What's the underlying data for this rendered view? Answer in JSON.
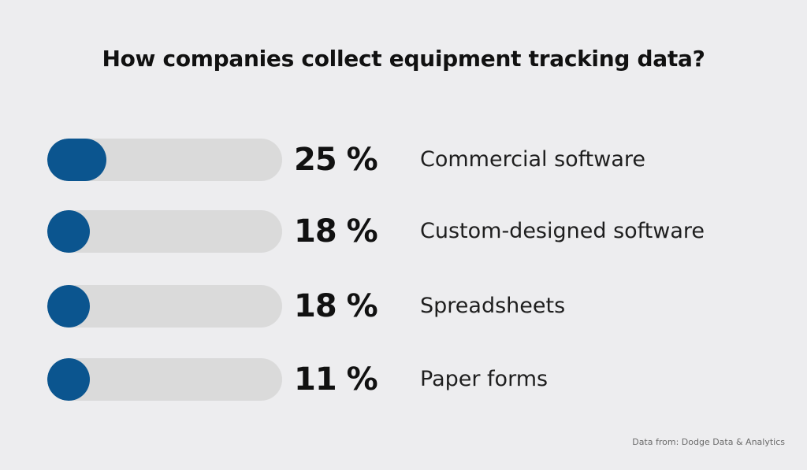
{
  "chart_data": {
    "type": "bar",
    "title": "How companies collect equipment tracking data?",
    "categories": [
      "Commercial software",
      "Custom-designed software",
      "Spreadsheets",
      "Paper forms"
    ],
    "values": [
      25,
      18,
      18,
      11
    ],
    "value_labels": [
      "25 %",
      "18 %",
      "18 %",
      "11 %"
    ],
    "xlim": [
      0,
      100
    ],
    "orientation": "horizontal",
    "grid": false,
    "legend": "none",
    "colors": {
      "fill": "#0b558f",
      "track": "#dadada",
      "background": "#ededef"
    }
  },
  "source_note": "Data from: Dodge Data & Analytics"
}
